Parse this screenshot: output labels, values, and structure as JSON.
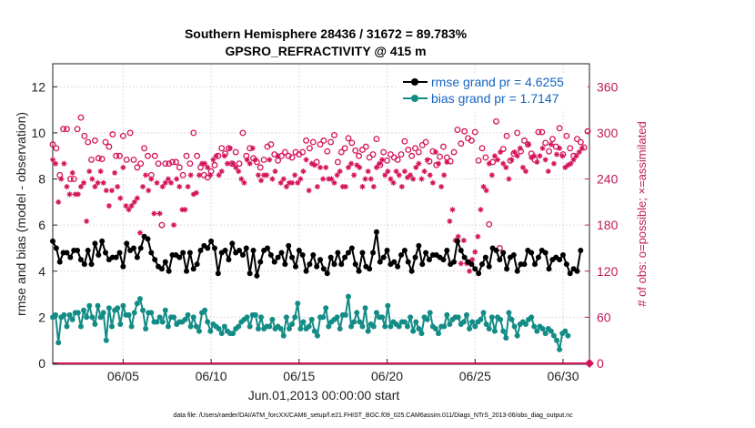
{
  "chart_data": {
    "type": "line",
    "title": "Southern Hemisphere 28436 / 31672 = 89.783%",
    "subtitle": "GPSRO_REFRACTIVITY @ 415 m",
    "xlabel": "Jun.01,2013 00:00:00 start",
    "ylabel": "rmse and bias (model - observation)",
    "ylabel_right": "# of obs: o=possible; ×=assimilated",
    "footer": "data file: /Users/raeder/DAI/ATM_forcXX/CAM6_setup/f.e21.FHIST_BGC.f09_025.CAM6assim.011/Diags_NTrS_2013-06/obs_diag_output.nc",
    "xlim": [
      1,
      31.5
    ],
    "ylim": [
      0,
      13
    ],
    "ylim_right": [
      0,
      390
    ],
    "x_ticks": [
      {
        "x": 5,
        "label": "06/05"
      },
      {
        "x": 10,
        "label": "06/10"
      },
      {
        "x": 15,
        "label": "06/15"
      },
      {
        "x": 20,
        "label": "06/20"
      },
      {
        "x": 25,
        "label": "06/25"
      },
      {
        "x": 30,
        "label": "06/30"
      }
    ],
    "y_ticks": [
      "0",
      "2",
      "4",
      "6",
      "8",
      "10",
      "12"
    ],
    "y_ticks_right": [
      "0",
      "60",
      "120",
      "180",
      "240",
      "300",
      "360"
    ],
    "grid": true,
    "legend_position": "top-right",
    "x_start": 1.0,
    "x_step": 0.25,
    "series": [
      {
        "name": "rmse grand pr = 4.6255",
        "color": "#000000",
        "marker": "filled-circle",
        "values": [
          5.3,
          5.0,
          4.4,
          4.8,
          4.8,
          4.6,
          4.9,
          4.9,
          4.5,
          4.3,
          4.9,
          4.3,
          5.2,
          4.7,
          5.3,
          4.8,
          4.5,
          4.6,
          4.6,
          4.8,
          4.2,
          5.2,
          4.9,
          5.0,
          4.6,
          5.0,
          5.5,
          5.4,
          4.8,
          4.5,
          4.2,
          4.1,
          4.4,
          4.0,
          4.7,
          4.7,
          4.6,
          4.8,
          4.0,
          4.8,
          4.1,
          4.3,
          4.9,
          5.1,
          5.0,
          5.3,
          5.0,
          3.9,
          4.8,
          4.9,
          4.5,
          5.2,
          4.8,
          4.9,
          4.7,
          5.0,
          3.9,
          4.9,
          3.8,
          4.4,
          4.9,
          5.0,
          4.7,
          4.4,
          4.6,
          4.8,
          4.3,
          5.1,
          4.6,
          4.2,
          4.9,
          4.7,
          4.0,
          4.3,
          4.7,
          4.2,
          4.5,
          4.1,
          3.9,
          4.6,
          4.3,
          4.8,
          4.3,
          4.6,
          4.8,
          5.0,
          4.3,
          4.0,
          4.8,
          4.2,
          4.1,
          4.8,
          5.7,
          4.4,
          4.6,
          4.9,
          4.3,
          4.4,
          4.2,
          4.7,
          4.9,
          4.4,
          4.0,
          4.6,
          5.1,
          4.3,
          4.8,
          4.5,
          4.7,
          4.7,
          4.6,
          4.5,
          4.9,
          4.3,
          4.4,
          5.3,
          4.9,
          4.6,
          4.4,
          4.3,
          4.1,
          3.9,
          4.3,
          4.6,
          4.2,
          5.0,
          4.9,
          4.5,
          4.8,
          4.1,
          4.6,
          4.7,
          4.0,
          4.3,
          4.3,
          4.9,
          4.8,
          4.3,
          4.6,
          4.9,
          4.8,
          4.1,
          4.5,
          4.6,
          4.5,
          4.7,
          4.3,
          3.9,
          4.1,
          4.0,
          4.9
        ],
        "x_step": 0.2
      },
      {
        "name": "bias grand pr = 1.7147",
        "color": "#138c86",
        "marker": "filled-circle",
        "values": [
          2.0,
          2.1,
          0.9,
          2.0,
          2.1,
          1.6,
          2.1,
          1.9,
          2.2,
          2.2,
          1.6,
          2.3,
          2.0,
          2.5,
          2.0,
          1.7,
          2.5,
          2.0,
          2.2,
          1.0,
          2.4,
          1.6,
          2.3,
          2.4,
          1.7,
          2.5,
          2.1,
          2.1,
          1.6,
          2.2,
          2.6,
          2.8,
          2.3,
          1.5,
          2.2,
          2.2,
          1.8,
          1.8,
          2.0,
          1.8,
          2.3,
          1.6,
          2.0,
          2.0,
          1.7,
          1.8,
          1.8,
          1.9,
          2.1,
          1.6,
          2.0,
          1.6,
          1.4,
          2.2,
          2.3,
          1.8,
          1.4,
          1.7,
          1.6,
          1.5,
          1.3,
          1.6,
          1.4,
          1.3,
          1.3,
          1.5,
          1.6,
          1.8,
          1.9,
          2.0,
          1.6,
          2.1,
          2.1,
          1.5,
          2.0,
          1.5,
          1.6,
          1.6,
          1.9,
          1.5,
          1.6,
          1.5,
          1.2,
          2.0,
          1.5,
          1.7,
          2.0,
          2.6,
          1.5,
          1.8,
          1.5,
          1.6,
          1.9,
          1.4,
          1.2,
          2.0,
          2.0,
          2.4,
          1.6,
          1.8,
          1.9,
          2.0,
          1.5,
          2.1,
          2.1,
          2.9,
          1.6,
          1.8,
          2.2,
          1.8,
          1.6,
          2.4,
          1.4,
          1.7,
          1.6,
          2.2,
          2.0,
          2.0,
          1.6,
          2.5,
          1.6,
          1.8,
          1.7,
          1.6,
          1.8,
          1.8,
          1.6,
          2.0,
          1.4,
          1.8,
          1.5,
          1.3,
          2.0,
          1.9,
          2.2,
          1.6,
          1.5,
          1.3,
          1.6,
          1.6,
          2.1,
          1.7,
          1.9,
          2.0,
          2.0,
          1.7,
          1.8,
          2.1,
          1.5,
          1.8,
          1.6,
          1.8,
          1.9,
          2.2,
          1.7,
          1.5,
          2.0,
          1.4,
          2.0,
          1.9,
          1.4,
          1.1,
          2.2,
          1.9,
          1.6,
          1.2,
          1.7,
          1.8,
          1.7,
          1.9,
          2.0,
          1.6,
          1.4,
          1.6,
          1.5,
          1.3,
          1.5,
          1.4,
          1.2,
          1.0,
          0.6,
          1.3,
          1.4,
          1.2
        ],
        "x_step": 0.16
      }
    ],
    "obs_possible": {
      "color": "#d4145a",
      "marker": "open-circle",
      "axis": "right",
      "x_step": 0.2,
      "values": [
        285,
        280,
        245,
        305,
        305,
        240,
        240,
        305,
        320,
        296,
        288,
        265,
        290,
        267,
        266,
        288,
        282,
        298,
        270,
        270,
        296,
        265,
        300,
        265,
        255,
        260,
        280,
        270,
        245,
        270,
        260,
        180,
        260,
        260,
        262,
        262,
        255,
        245,
        270,
        260,
        300,
        270,
        255,
        245,
        242,
        250,
        258,
        270,
        280,
        273,
        280,
        260,
        275,
        260,
        300,
        270,
        280,
        267,
        262,
        255,
        265,
        282,
        285,
        272,
        264,
        270,
        275,
        270,
        268,
        275,
        272,
        275,
        290,
        280,
        288,
        262,
        285,
        290,
        276,
        288,
        297,
        262,
        275,
        280,
        293,
        287,
        277,
        270,
        278,
        282,
        268,
        272,
        292,
        258,
        275,
        264,
        272,
        268,
        265,
        272,
        289,
        278,
        270,
        280,
        275,
        284,
        288,
        263,
        276,
        258,
        269,
        282,
        268,
        263,
        275,
        304,
        286,
        302,
        293,
        290,
        301,
        264,
        280,
        268,
        181,
        262,
        315,
        150,
        279,
        296,
        264,
        273,
        300,
        276,
        290,
        285,
        273,
        265,
        301,
        301,
        287,
        276,
        292,
        282,
        306,
        272,
        296,
        280,
        270,
        292,
        288,
        281,
        302,
        284,
        163,
        240,
        144,
        310,
        302,
        296,
        274,
        311,
        292,
        294,
        288,
        278,
        268,
        299,
        301,
        293,
        279,
        266
      ]
    },
    "obs_assimilated": {
      "color": "#d4145a",
      "marker": "asterisk",
      "axis": "right",
      "x_step": 0.16,
      "values": [
        265,
        260,
        210,
        240,
        260,
        230,
        220,
        248,
        220,
        220,
        230,
        235,
        185,
        250,
        240,
        230,
        235,
        250,
        235,
        225,
        205,
        225,
        248,
        230,
        215,
        255,
        205,
        200,
        205,
        210,
        215,
        170,
        230,
        245,
        225,
        240,
        195,
        235,
        195,
        230,
        235,
        240,
        235,
        180,
        240,
        230,
        200,
        200,
        230,
        245,
        220,
        222,
        245,
        260,
        260,
        255,
        245,
        265,
        270,
        245,
        250,
        270,
        260,
        280,
        260,
        255,
        250,
        240,
        235,
        265,
        260,
        280,
        265,
        245,
        238,
        245,
        245,
        265,
        240,
        250,
        270,
        235,
        240,
        230,
        235,
        235,
        245,
        235,
        240,
        250,
        265,
        225,
        260,
        258,
        230,
        255,
        240,
        255,
        240,
        240,
        235,
        245,
        250,
        230,
        230,
        255,
        260,
        245,
        258,
        255,
        230,
        240,
        250,
        240,
        230,
        255,
        260,
        265,
        245,
        250,
        240,
        235,
        250,
        245,
        230,
        250,
        242,
        245,
        240,
        255,
        260,
        240,
        250,
        265,
        245,
        235,
        275,
        260,
        230,
        245,
        262,
        185,
        200,
        160,
        165,
        130,
        160,
        130,
        120,
        135,
        145,
        165,
        200,
        230,
        225,
        260,
        245,
        270,
        265,
        275,
        260,
        255,
        240,
        265,
        275,
        270,
        280,
        255,
        250,
        285,
        268,
        270,
        262,
        270,
        280,
        265,
        250,
        285,
        260,
        272,
        280,
        270,
        255,
        258,
        260,
        265,
        270,
        275,
        280
      ]
    }
  }
}
